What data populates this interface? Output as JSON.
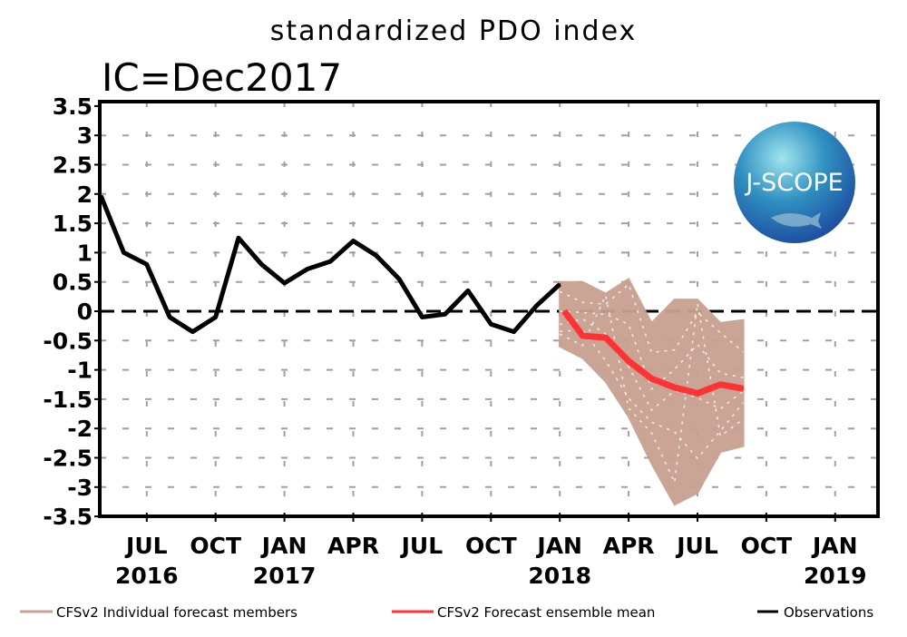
{
  "chart_data": {
    "type": "line",
    "title": "standardized PDO index",
    "subtitle": "IC=Dec2017",
    "xlabel": "",
    "ylabel": "",
    "x_units": "months since Jan 2016",
    "xlim": [
      4,
      38
    ],
    "ylim": [
      -3.5,
      3.5
    ],
    "y_ticks": [
      3.5,
      3,
      2.5,
      2,
      1.5,
      1,
      0.5,
      0,
      -0.5,
      -1,
      -1.5,
      -2,
      -2.5,
      -3,
      -3.5
    ],
    "y_tick_labels": [
      "3.5",
      "3",
      "2.5",
      "2",
      "1.5",
      "1",
      "0.5",
      "0",
      "-0.5",
      "-1",
      "-1.5",
      "-2",
      "-2.5",
      "-3",
      "-3.5"
    ],
    "x_ticks": [
      {
        "m": 6,
        "label": "JUL",
        "year": "2016"
      },
      {
        "m": 9,
        "label": "OCT",
        "year": ""
      },
      {
        "m": 12,
        "label": "JAN",
        "year": "2017"
      },
      {
        "m": 15,
        "label": "APR",
        "year": ""
      },
      {
        "m": 18,
        "label": "JUL",
        "year": ""
      },
      {
        "m": 21,
        "label": "OCT",
        "year": ""
      },
      {
        "m": 24,
        "label": "JAN",
        "year": "2018"
      },
      {
        "m": 27,
        "label": "APR",
        "year": ""
      },
      {
        "m": 30,
        "label": "JUL",
        "year": ""
      },
      {
        "m": 33,
        "label": "OCT",
        "year": ""
      },
      {
        "m": 36,
        "label": "JAN",
        "year": "2019"
      }
    ],
    "grid": true,
    "series": [
      {
        "name": "Observations",
        "color": "#000000",
        "x": [
          4,
          5,
          6,
          7,
          8,
          9,
          10,
          11,
          12,
          13,
          14,
          15,
          16,
          17,
          18,
          19,
          20,
          21,
          22,
          23,
          24
        ],
        "y": [
          1.97,
          1.0,
          0.8,
          -0.1,
          -0.35,
          -0.1,
          1.25,
          0.8,
          0.48,
          0.72,
          0.85,
          1.2,
          0.95,
          0.55,
          -0.1,
          -0.05,
          0.35,
          -0.22,
          -0.35,
          0.1,
          0.46
        ]
      },
      {
        "name": "CFSv2 Forecast ensemble mean",
        "color": "#ff3333",
        "x": [
          24.2,
          25,
          26,
          27,
          28,
          29,
          30,
          31,
          32
        ],
        "y": [
          0.0,
          -0.42,
          -0.45,
          -0.85,
          -1.15,
          -1.3,
          -1.4,
          -1.25,
          -1.32
        ]
      },
      {
        "name": "CFSv2 Individual forecast members",
        "color": "#c8a090",
        "envelope": {
          "x": [
            24,
            25,
            26,
            27,
            28,
            29,
            30,
            31,
            32
          ],
          "upper": [
            0.5,
            0.5,
            0.3,
            0.55,
            -0.2,
            0.2,
            0.2,
            -0.2,
            -0.15
          ],
          "lower": [
            -0.6,
            -0.8,
            -1.2,
            -1.8,
            -2.6,
            -3.3,
            -3.1,
            -2.4,
            -2.3
          ]
        }
      }
    ],
    "zero_line": 0,
    "legend": {
      "placement": "bottom",
      "items": [
        {
          "label": "CFSv2 Individual forecast members",
          "color": "#c8a090"
        },
        {
          "label": "CFSv2 Forecast ensemble mean",
          "color": "#ff3333"
        },
        {
          "label": "Observations",
          "color": "#000000"
        }
      ]
    },
    "logo_text": "J-SCOPE"
  }
}
